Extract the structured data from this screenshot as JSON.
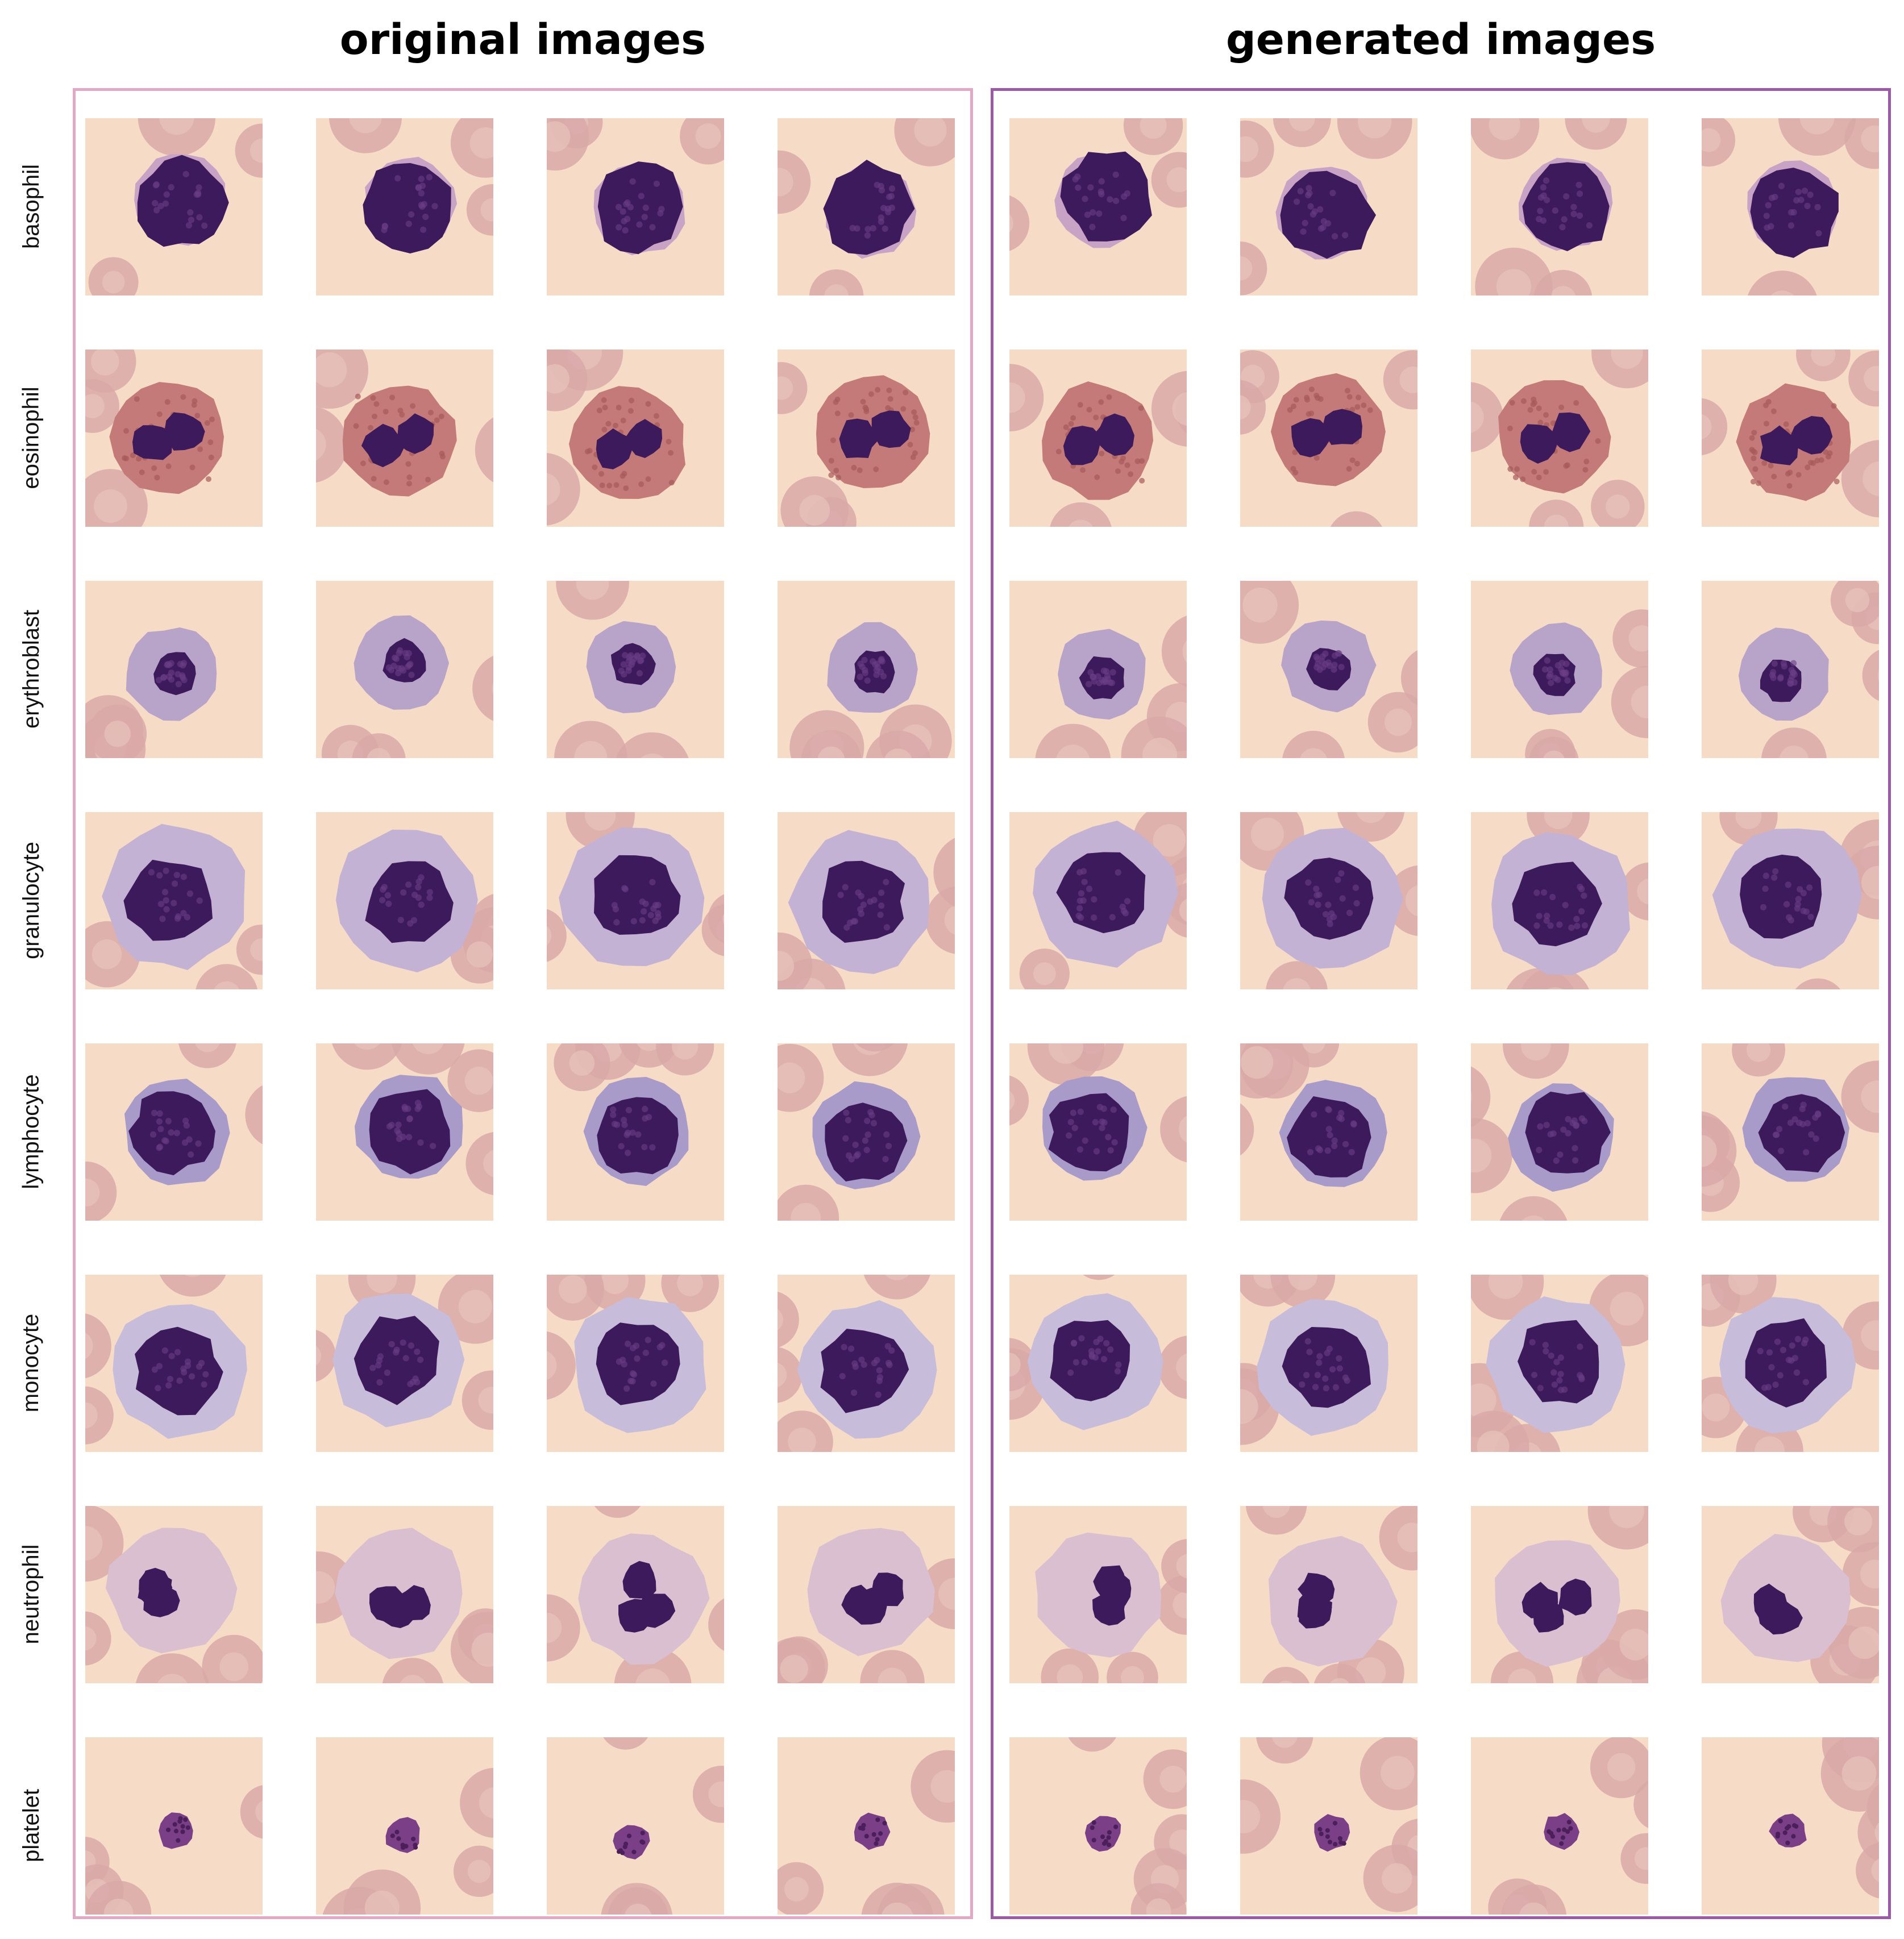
{
  "titles": {
    "original": "original images",
    "generated": "generated images"
  },
  "frame_colors": {
    "original": "#e3a9c4",
    "generated": "#9b59a7"
  },
  "background_color": "#f6dcc6",
  "rbc_color": "#d9a9a8",
  "rows": [
    {
      "label": "basophil",
      "kind": "baso"
    },
    {
      "label": "eosinophil",
      "kind": "eos"
    },
    {
      "label": "erythroblast",
      "kind": "ery"
    },
    {
      "label": "granulocyte",
      "kind": "gran"
    },
    {
      "label": "lymphocyte",
      "kind": "lymph"
    },
    {
      "label": "monocyte",
      "kind": "mono"
    },
    {
      "label": "neutrophil",
      "kind": "neut"
    },
    {
      "label": "platelet",
      "kind": "plt"
    }
  ],
  "columns": [
    "original",
    "original",
    "original",
    "original",
    "generated",
    "generated",
    "generated",
    "generated"
  ]
}
